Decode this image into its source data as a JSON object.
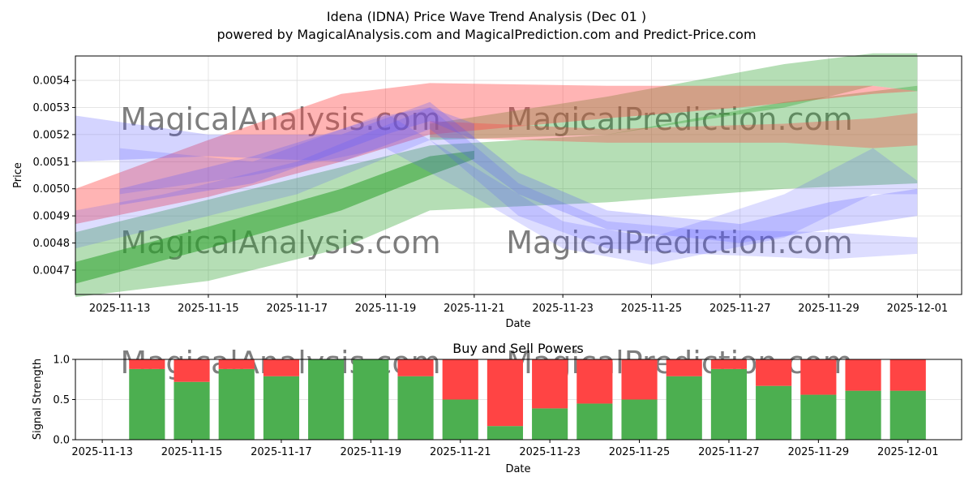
{
  "title": "Idena (IDNA) Price Wave Trend Analysis (Dec 01 )",
  "subtitle": "powered by MagicalAnalysis.com and MagicalPrediction.com and Predict-Price.com",
  "watermarks": [
    "MagicalAnalysis.com",
    "MagicalPrediction.com"
  ],
  "colors": {
    "green": "#2ca02c",
    "red": "#ff4444",
    "blue": "#5555ff",
    "bar_green": "#4caf50",
    "bar_red": "#ff4444"
  },
  "chart_data": [
    {
      "type": "area",
      "title": "",
      "xlabel": "Date",
      "ylabel": "Price",
      "grid": true,
      "x_range": [
        "2025-11-12",
        "2025-12-02"
      ],
      "ylim": [
        0.00461,
        0.00549
      ],
      "x_ticks": [
        "2025-11-13",
        "2025-11-15",
        "2025-11-17",
        "2025-11-19",
        "2025-11-21",
        "2025-11-23",
        "2025-11-25",
        "2025-11-27",
        "2025-11-29",
        "2025-12-01"
      ],
      "y_ticks": [
        0.0047,
        0.0048,
        0.0049,
        0.005,
        0.0051,
        0.0052,
        0.0053,
        0.0054
      ],
      "y_tick_labels": [
        "0.0047",
        "0.0048",
        "0.0049",
        "0.0050",
        "0.0051",
        "0.0052",
        "0.0053",
        "0.0054"
      ],
      "series": [
        {
          "name": "green-wave-lower",
          "color": "green",
          "opacity": 0.55,
          "x": [
            "2025-11-12",
            "2025-11-15",
            "2025-11-18",
            "2025-11-20",
            "2025-11-21"
          ],
          "lower": [
            0.00465,
            0.00478,
            0.00492,
            0.00505,
            0.00511
          ],
          "upper": [
            0.00473,
            0.00486,
            0.005,
            0.00512,
            0.00514
          ]
        },
        {
          "name": "green-wave-wide",
          "color": "green",
          "opacity": 0.35,
          "x": [
            "2025-11-12",
            "2025-11-15",
            "2025-11-18",
            "2025-11-20",
            "2025-11-24",
            "2025-11-28",
            "2025-12-01"
          ],
          "lower": [
            0.0046,
            0.00466,
            0.00478,
            0.00492,
            0.00495,
            0.005,
            0.00502
          ],
          "upper": [
            0.00484,
            0.00496,
            0.00508,
            0.00516,
            0.0052,
            0.00532,
            0.00538
          ]
        },
        {
          "name": "green-wave-upper",
          "color": "green",
          "opacity": 0.35,
          "x": [
            "2025-11-20",
            "2025-11-24",
            "2025-11-28",
            "2025-11-30",
            "2025-12-01"
          ],
          "lower": [
            0.00518,
            0.0052,
            0.0053,
            0.00538,
            0.00536
          ],
          "upper": [
            0.00524,
            0.00534,
            0.00546,
            0.0055,
            0.0055
          ]
        },
        {
          "name": "red-wave-main",
          "color": "red",
          "opacity": 0.4,
          "x": [
            "2025-11-12",
            "2025-11-15",
            "2025-11-18",
            "2025-11-20",
            "2025-11-24",
            "2025-11-27",
            "2025-11-30",
            "2025-12-01"
          ],
          "lower": [
            0.00487,
            0.00497,
            0.0051,
            0.0052,
            0.00526,
            0.0053,
            0.00535,
            0.00536
          ],
          "upper": [
            0.005,
            0.00518,
            0.00535,
            0.00539,
            0.00538,
            0.00538,
            0.00538,
            0.00536
          ]
        },
        {
          "name": "red-wave-lower",
          "color": "red",
          "opacity": 0.35,
          "x": [
            "2025-11-20",
            "2025-11-24",
            "2025-11-28",
            "2025-11-30",
            "2025-12-01"
          ],
          "lower": [
            0.00519,
            0.00517,
            0.00517,
            0.00515,
            0.00516
          ],
          "upper": [
            0.00525,
            0.00522,
            0.00524,
            0.00526,
            0.00528
          ]
        },
        {
          "name": "blue-wave-1",
          "color": "blue",
          "opacity": 0.25,
          "x": [
            "2025-11-12",
            "2025-11-15",
            "2025-11-18",
            "2025-11-20",
            "2025-11-22",
            "2025-11-24",
            "2025-11-27",
            "2025-11-29",
            "2025-12-01"
          ],
          "lower": [
            0.0051,
            0.00512,
            0.0051,
            0.00522,
            0.00498,
            0.00485,
            0.0048,
            0.00485,
            0.0049
          ],
          "upper": [
            0.00527,
            0.0052,
            0.0052,
            0.00532,
            0.00506,
            0.00492,
            0.00487,
            0.00495,
            0.005
          ]
        },
        {
          "name": "blue-wave-2",
          "color": "blue",
          "opacity": 0.2,
          "x": [
            "2025-11-12",
            "2025-11-14",
            "2025-11-17",
            "2025-11-20",
            "2025-11-22",
            "2025-11-24",
            "2025-11-26",
            "2025-11-29",
            "2025-12-01"
          ],
          "lower": [
            0.00478,
            0.00486,
            0.00498,
            0.00518,
            0.0049,
            0.00478,
            0.00476,
            0.00474,
            0.00476
          ],
          "upper": [
            0.00492,
            0.00498,
            0.0051,
            0.0053,
            0.00502,
            0.00488,
            0.00485,
            0.00484,
            0.00482
          ]
        },
        {
          "name": "blue-wave-3",
          "color": "blue",
          "opacity": 0.2,
          "x": [
            "2025-11-13",
            "2025-11-16",
            "2025-11-19",
            "2025-11-21",
            "2025-11-23",
            "2025-11-25",
            "2025-11-28",
            "2025-11-30",
            "2025-12-01"
          ],
          "lower": [
            0.00498,
            0.00505,
            0.00515,
            0.00497,
            0.00478,
            0.00472,
            0.00482,
            0.00498,
            0.00498
          ],
          "upper": [
            0.00515,
            0.0051,
            0.00528,
            0.00508,
            0.00488,
            0.00482,
            0.00498,
            0.00515,
            0.00503
          ]
        },
        {
          "name": "purple-wave",
          "color": "blue",
          "opacity": 0.25,
          "x": [
            "2025-11-13",
            "2025-11-16",
            "2025-11-19",
            "2025-11-20",
            "2025-11-21"
          ],
          "lower": [
            0.00494,
            0.00502,
            0.0052,
            0.00525,
            0.00518
          ],
          "upper": [
            0.005,
            0.00512,
            0.00527,
            0.0053,
            0.00524
          ]
        }
      ]
    },
    {
      "type": "bar",
      "title": "Buy and Sell Powers",
      "xlabel": "Date",
      "ylabel": "Signal Strength",
      "grid": true,
      "ylim": [
        0,
        1
      ],
      "y_ticks": [
        0,
        0.5,
        1
      ],
      "y_tick_labels": [
        "0.0",
        "0.5",
        "1.0"
      ],
      "x_range": [
        "2025-11-13",
        "2025-12-02"
      ],
      "x_ticks": [
        "2025-11-13",
        "2025-11-15",
        "2025-11-17",
        "2025-11-19",
        "2025-11-21",
        "2025-11-23",
        "2025-11-25",
        "2025-11-27",
        "2025-11-29",
        "2025-12-01"
      ],
      "categories": [
        "2025-11-14",
        "2025-11-15",
        "2025-11-16",
        "2025-11-17",
        "2025-11-18",
        "2025-11-19",
        "2025-11-20",
        "2025-11-21",
        "2025-11-22",
        "2025-11-23",
        "2025-11-24",
        "2025-11-25",
        "2025-11-26",
        "2025-11-27",
        "2025-11-28",
        "2025-11-29",
        "2025-11-30",
        "2025-12-01"
      ],
      "series": [
        {
          "name": "Buy",
          "color": "bar_green",
          "values": [
            0.88,
            0.72,
            0.88,
            0.79,
            1.0,
            1.0,
            0.79,
            0.5,
            0.17,
            0.39,
            0.45,
            0.5,
            0.79,
            0.88,
            0.67,
            0.56,
            0.61,
            0.61
          ]
        },
        {
          "name": "Sell",
          "color": "bar_red",
          "values": [
            0.12,
            0.28,
            0.12,
            0.21,
            0.0,
            0.0,
            0.21,
            0.5,
            0.83,
            0.61,
            0.55,
            0.5,
            0.21,
            0.12,
            0.33,
            0.44,
            0.39,
            0.39
          ]
        }
      ]
    }
  ]
}
